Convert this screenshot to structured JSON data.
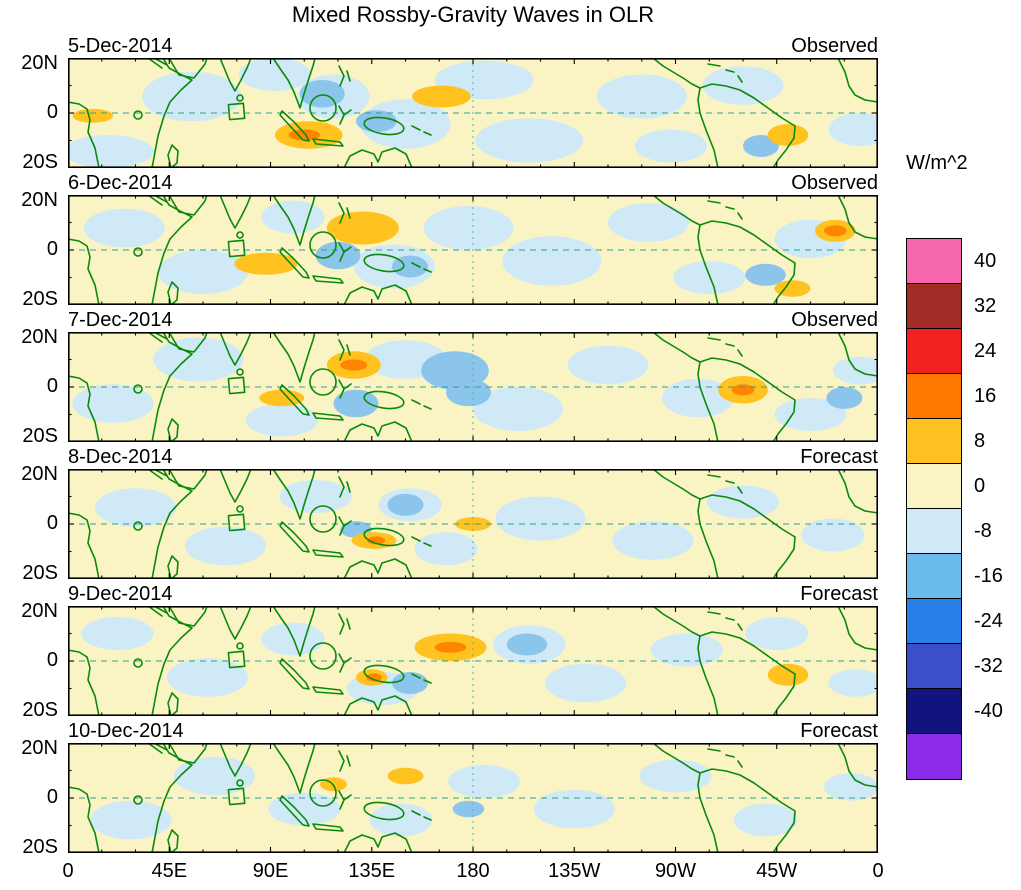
{
  "chart_data": {
    "type": "heatmap",
    "title": "Mixed Rossby-Gravity Waves in OLR",
    "colorbar": {
      "label": "W/m^2",
      "levels": [
        40,
        32,
        24,
        16,
        8,
        0,
        -8,
        -16,
        -24,
        -32,
        -40
      ],
      "colors": [
        "#F566AE",
        "#A12D26",
        "#F32222",
        "#FF7A00",
        "#FFC022",
        "#FAF4C4",
        "#CFE9F6",
        "#6ABAEE",
        "#2B7FE8",
        "#3B50C8",
        "#131380",
        "#8B2BE8"
      ]
    },
    "x_axis": {
      "ticks": [
        "0",
        "45E",
        "90E",
        "135E",
        "180",
        "135W",
        "90W",
        "45W",
        "0"
      ],
      "range_deg_lon": [
        0,
        360
      ],
      "grid": "dashed line at 180"
    },
    "y_axis": {
      "ticks": [
        "20N",
        "0",
        "20S"
      ],
      "range_deg_lat": [
        20,
        -20
      ],
      "grid": "dashed line at equator"
    },
    "map": {
      "base_color": "#FAF4C4",
      "coast_color": "#0A8A0A"
    },
    "feature_colors": {
      "lb": "#CFE9F6",
      "mb": "#8CC5EC",
      "gold": "#FFC21E",
      "orange": "#FF8400"
    },
    "panels": [
      {
        "date": "5-Dec-2014",
        "label": "Observed",
        "features": [
          [
            18,
            -14,
            20,
            6,
            "lb"
          ],
          [
            55,
            6,
            22,
            9,
            "lb"
          ],
          [
            92,
            14,
            16,
            6,
            "lb"
          ],
          [
            118,
            6,
            16,
            8,
            "lb"
          ],
          [
            150,
            -4,
            20,
            9,
            "lb"
          ],
          [
            185,
            12,
            22,
            7,
            "lb"
          ],
          [
            205,
            -10,
            24,
            8,
            "lb"
          ],
          [
            255,
            6,
            20,
            8,
            "lb"
          ],
          [
            268,
            -12,
            16,
            6,
            "lb"
          ],
          [
            300,
            10,
            18,
            7,
            "lb"
          ],
          [
            352,
            -6,
            14,
            6,
            "lb"
          ],
          [
            113,
            7,
            10,
            5,
            "mb"
          ],
          [
            137,
            -3,
            9,
            4,
            "mb"
          ],
          [
            308,
            -12,
            8,
            4,
            "mb"
          ],
          [
            107,
            -8,
            15,
            5,
            "gold"
          ],
          [
            166,
            6,
            13,
            4,
            "gold"
          ],
          [
            11,
            -1,
            9,
            2.5,
            "gold"
          ],
          [
            320,
            -8,
            9,
            4,
            "gold"
          ],
          [
            105,
            -8,
            7,
            2,
            "orange"
          ]
        ]
      },
      {
        "date": "6-Dec-2014",
        "label": "Observed",
        "features": [
          [
            25,
            8,
            18,
            7,
            "lb"
          ],
          [
            60,
            -8,
            20,
            8,
            "lb"
          ],
          [
            100,
            12,
            14,
            6,
            "lb"
          ],
          [
            145,
            -6,
            18,
            8,
            "lb"
          ],
          [
            178,
            8,
            20,
            8,
            "lb"
          ],
          [
            215,
            -4,
            22,
            9,
            "lb"
          ],
          [
            258,
            10,
            18,
            7,
            "lb"
          ],
          [
            285,
            -10,
            16,
            6,
            "lb"
          ],
          [
            330,
            4,
            16,
            7,
            "lb"
          ],
          [
            120,
            -2,
            10,
            5,
            "mb"
          ],
          [
            152,
            -6,
            8,
            4,
            "mb"
          ],
          [
            310,
            -9,
            9,
            4,
            "mb"
          ],
          [
            131,
            8,
            16,
            6,
            "gold"
          ],
          [
            88,
            -5,
            14,
            4,
            "gold"
          ],
          [
            341,
            7,
            9,
            4,
            "gold"
          ],
          [
            322,
            -14,
            8,
            3,
            "gold"
          ],
          [
            341,
            7,
            5,
            2,
            "orange"
          ]
        ]
      },
      {
        "date": "7-Dec-2014",
        "label": "Observed",
        "features": [
          [
            20,
            -6,
            18,
            7,
            "lb"
          ],
          [
            58,
            10,
            20,
            8,
            "lb"
          ],
          [
            95,
            -12,
            16,
            6,
            "lb"
          ],
          [
            150,
            10,
            18,
            7,
            "lb"
          ],
          [
            200,
            -8,
            20,
            8,
            "lb"
          ],
          [
            240,
            8,
            18,
            7,
            "lb"
          ],
          [
            280,
            -4,
            16,
            7,
            "lb"
          ],
          [
            330,
            -10,
            16,
            6,
            "lb"
          ],
          [
            352,
            6,
            12,
            5,
            "lb"
          ],
          [
            128,
            -6,
            10,
            5,
            "mb"
          ],
          [
            172,
            6,
            15,
            7,
            "mb"
          ],
          [
            178,
            -2,
            10,
            5,
            "mb"
          ],
          [
            345,
            -4,
            8,
            4,
            "mb"
          ],
          [
            127,
            8,
            12,
            5,
            "gold"
          ],
          [
            300,
            -1,
            11,
            5,
            "gold"
          ],
          [
            95,
            -4,
            10,
            3,
            "gold"
          ],
          [
            127,
            8,
            6,
            2,
            "orange"
          ],
          [
            300,
            -1,
            5,
            2,
            "orange"
          ]
        ]
      },
      {
        "date": "8-Dec-2014",
        "label": "Forecast",
        "features": [
          [
            30,
            6,
            18,
            7,
            "lb"
          ],
          [
            70,
            -8,
            18,
            7,
            "lb"
          ],
          [
            110,
            10,
            16,
            6,
            "lb"
          ],
          [
            152,
            7,
            14,
            6,
            "lb"
          ],
          [
            168,
            -9,
            14,
            6,
            "lb"
          ],
          [
            210,
            2,
            20,
            8,
            "lb"
          ],
          [
            260,
            -6,
            18,
            7,
            "lb"
          ],
          [
            300,
            8,
            16,
            6,
            "lb"
          ],
          [
            340,
            -4,
            14,
            6,
            "lb"
          ],
          [
            150,
            7,
            8,
            4,
            "mb"
          ],
          [
            128,
            -2,
            7,
            3,
            "mb"
          ],
          [
            136,
            -6,
            10,
            3,
            "gold"
          ],
          [
            180,
            0,
            8,
            2.5,
            "gold"
          ],
          [
            137,
            -6,
            4,
            1.5,
            "orange"
          ]
        ]
      },
      {
        "date": "9-Dec-2014",
        "label": "Forecast",
        "features": [
          [
            22,
            10,
            16,
            6,
            "lb"
          ],
          [
            62,
            -6,
            18,
            7,
            "lb"
          ],
          [
            100,
            8,
            14,
            6,
            "lb"
          ],
          [
            140,
            -10,
            16,
            6,
            "lb"
          ],
          [
            205,
            6,
            16,
            7,
            "lb"
          ],
          [
            230,
            -8,
            18,
            7,
            "lb"
          ],
          [
            275,
            4,
            16,
            6,
            "lb"
          ],
          [
            315,
            10,
            14,
            6,
            "lb"
          ],
          [
            350,
            -8,
            12,
            5,
            "lb"
          ],
          [
            204,
            6,
            9,
            4,
            "mb"
          ],
          [
            152,
            -8,
            8,
            4,
            "mb"
          ],
          [
            170,
            5,
            16,
            5,
            "gold"
          ],
          [
            320,
            -5,
            9,
            4,
            "gold"
          ],
          [
            135,
            -6,
            7,
            3,
            "gold"
          ],
          [
            170,
            5,
            7,
            2,
            "orange"
          ],
          [
            136,
            -6,
            3.5,
            1.5,
            "orange"
          ]
        ]
      },
      {
        "date": "10-Dec-2014",
        "label": "Forecast",
        "features": [
          [
            28,
            -8,
            18,
            7,
            "lb"
          ],
          [
            65,
            8,
            18,
            7,
            "lb"
          ],
          [
            105,
            -4,
            16,
            6,
            "lb"
          ],
          [
            148,
            -8,
            14,
            6,
            "lb"
          ],
          [
            185,
            6,
            16,
            6,
            "lb"
          ],
          [
            225,
            -4,
            18,
            7,
            "lb"
          ],
          [
            270,
            8,
            16,
            6,
            "lb"
          ],
          [
            310,
            -8,
            14,
            6,
            "lb"
          ],
          [
            348,
            4,
            12,
            5,
            "lb"
          ],
          [
            178,
            -4,
            7,
            3,
            "mb"
          ],
          [
            150,
            8,
            8,
            3,
            "gold"
          ],
          [
            118,
            5,
            6,
            2.5,
            "gold"
          ]
        ]
      }
    ]
  }
}
